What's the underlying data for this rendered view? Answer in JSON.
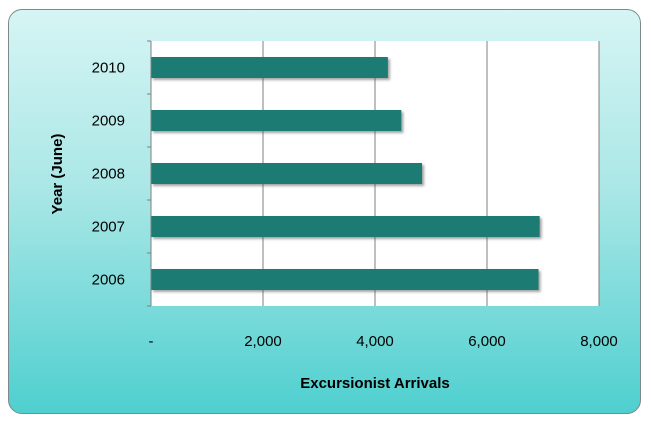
{
  "chart_data": {
    "type": "bar",
    "orientation": "horizontal",
    "categories": [
      "2010",
      "2009",
      "2008",
      "2007",
      "2006"
    ],
    "values": [
      4230,
      4470,
      4840,
      6940,
      6920
    ],
    "xlabel": "Excursionist Arrivals",
    "ylabel": "Year (June)",
    "xlim": [
      0,
      8000
    ],
    "xticks": [
      0,
      2000,
      4000,
      6000,
      8000
    ],
    "xtick_labels": [
      "-",
      "2,000",
      "4,000",
      "6,000",
      "8,000"
    ],
    "grid": "vertical",
    "legend": "none",
    "colors": {
      "bar": "#1e7b73",
      "plot_bg": "#ffffff",
      "grid": "#7f7f7f",
      "frame_top": "#d6f5f4",
      "frame_bottom": "#4fcfcf"
    }
  }
}
